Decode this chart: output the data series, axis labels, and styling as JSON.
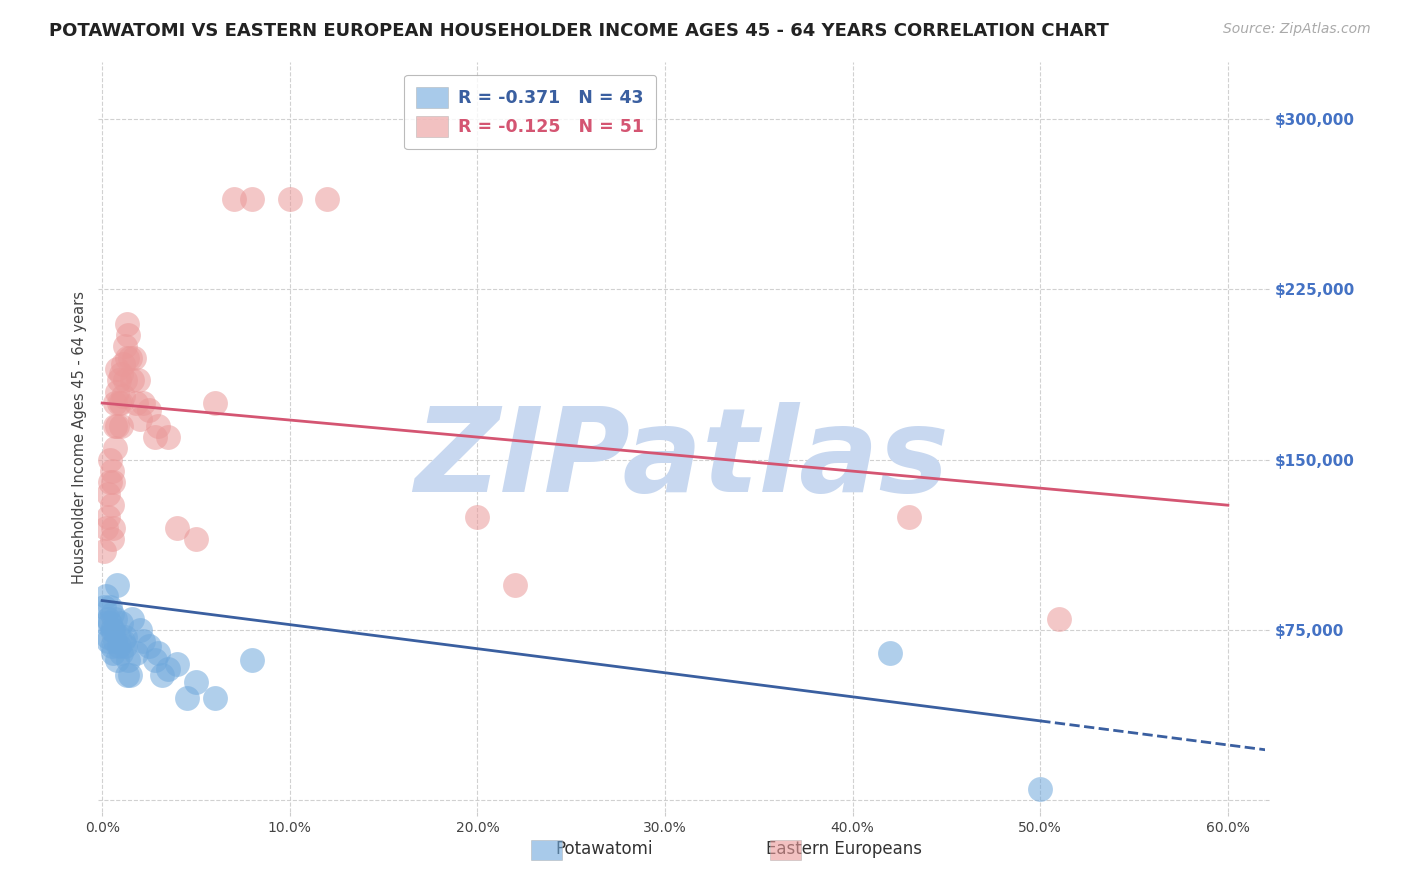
{
  "title": "POTAWATOMI VS EASTERN EUROPEAN HOUSEHOLDER INCOME AGES 45 - 64 YEARS CORRELATION CHART",
  "source": "Source: ZipAtlas.com",
  "ylabel": "Householder Income Ages 45 - 64 years",
  "xlim": [
    -0.002,
    0.62
  ],
  "ylim": [
    -5000,
    325000
  ],
  "yticks": [
    0,
    75000,
    150000,
    225000,
    300000
  ],
  "ytick_labels": [
    "",
    "$75,000",
    "$150,000",
    "$225,000",
    "$300,000"
  ],
  "xticks": [
    0.0,
    0.1,
    0.2,
    0.3,
    0.4,
    0.5,
    0.6
  ],
  "xtick_labels": [
    "0.0%",
    "10.0%",
    "20.0%",
    "30.0%",
    "40.0%",
    "50.0%",
    "60.0%"
  ],
  "blue_color": "#6fa8dc",
  "pink_color": "#ea9999",
  "blue_line_color": "#3a5fa0",
  "pink_line_color": "#d45572",
  "R_blue": -0.371,
  "N_blue": 43,
  "R_pink": -0.125,
  "N_pink": 51,
  "blue_scatter_x": [
    0.001,
    0.002,
    0.002,
    0.003,
    0.003,
    0.003,
    0.004,
    0.004,
    0.005,
    0.005,
    0.005,
    0.006,
    0.006,
    0.007,
    0.007,
    0.008,
    0.008,
    0.009,
    0.009,
    0.01,
    0.01,
    0.011,
    0.012,
    0.012,
    0.013,
    0.014,
    0.015,
    0.016,
    0.018,
    0.02,
    0.022,
    0.025,
    0.028,
    0.03,
    0.032,
    0.035,
    0.04,
    0.045,
    0.05,
    0.06,
    0.08,
    0.42,
    0.5
  ],
  "blue_scatter_y": [
    85000,
    90000,
    78000,
    80000,
    72000,
    70000,
    85000,
    78000,
    75000,
    68000,
    82000,
    65000,
    75000,
    80000,
    70000,
    62000,
    95000,
    68000,
    72000,
    65000,
    78000,
    70000,
    68000,
    72000,
    55000,
    62000,
    55000,
    80000,
    65000,
    75000,
    70000,
    68000,
    62000,
    65000,
    55000,
    58000,
    60000,
    45000,
    52000,
    45000,
    62000,
    65000,
    5000
  ],
  "pink_scatter_x": [
    0.001,
    0.002,
    0.003,
    0.003,
    0.004,
    0.004,
    0.005,
    0.005,
    0.005,
    0.006,
    0.006,
    0.007,
    0.007,
    0.007,
    0.008,
    0.008,
    0.008,
    0.009,
    0.009,
    0.01,
    0.01,
    0.01,
    0.011,
    0.011,
    0.012,
    0.012,
    0.013,
    0.013,
    0.014,
    0.015,
    0.016,
    0.017,
    0.018,
    0.019,
    0.02,
    0.022,
    0.025,
    0.028,
    0.03,
    0.035,
    0.04,
    0.05,
    0.06,
    0.07,
    0.08,
    0.1,
    0.12,
    0.2,
    0.22,
    0.43,
    0.51
  ],
  "pink_scatter_y": [
    110000,
    120000,
    125000,
    135000,
    140000,
    150000,
    115000,
    130000,
    145000,
    120000,
    140000,
    155000,
    165000,
    175000,
    165000,
    180000,
    190000,
    175000,
    185000,
    165000,
    175000,
    188000,
    178000,
    192000,
    200000,
    185000,
    195000,
    210000,
    205000,
    195000,
    185000,
    195000,
    175000,
    185000,
    168000,
    175000,
    172000,
    160000,
    165000,
    160000,
    120000,
    115000,
    175000,
    265000,
    265000,
    265000,
    265000,
    125000,
    95000,
    125000,
    80000
  ],
  "watermark_text": "ZIPatlas",
  "watermark_color": "#c8d8f0",
  "background_color": "#ffffff",
  "grid_color": "#cccccc",
  "ytick_color": "#4472c4",
  "title_fontsize": 13,
  "axis_label_fontsize": 10.5,
  "tick_fontsize": 10,
  "source_fontsize": 10,
  "legend_text_blue": "R = -0.371   N = 43",
  "legend_text_pink": "R = -0.125   N = 51",
  "bottom_label_blue": "Potawatomi",
  "bottom_label_pink": "Eastern Europeans",
  "pink_line_x0": 0.0,
  "pink_line_y0": 175000,
  "pink_line_x1": 0.6,
  "pink_line_y1": 130000,
  "blue_line_x0": 0.0,
  "blue_line_y0": 88000,
  "blue_line_x1": 0.5,
  "blue_line_y1": 35000
}
